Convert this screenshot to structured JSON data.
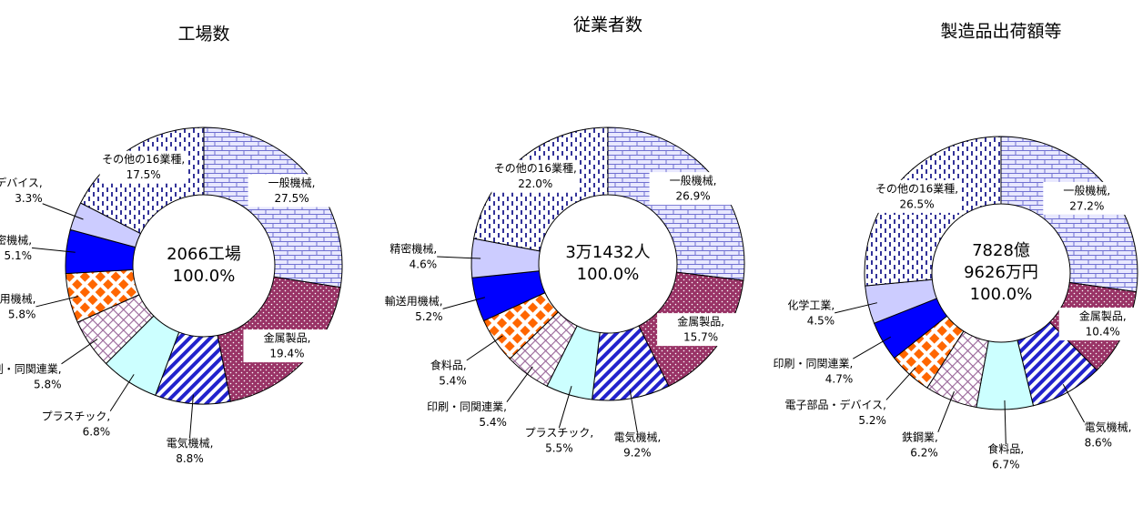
{
  "chart_data": [
    {
      "type": "pie",
      "title": "工場数",
      "categories": [
        "一般機械,",
        "金属製品,",
        "電気機械,",
        "プラスチック,",
        "印刷・同関連業,",
        "輸送用機械,",
        "精密機械,",
        "電子部品・デバイス,",
        "その他の16業種,"
      ],
      "values": [
        27.5,
        19.4,
        8.8,
        6.8,
        5.8,
        5.8,
        5.1,
        3.3,
        17.5
      ],
      "value_labels": [
        "27.5%",
        "19.4%",
        "8.8%",
        "6.8%",
        "5.8%",
        "5.8%",
        "5.1%",
        "3.3%",
        "17.5%"
      ],
      "center_label": [
        "2066工場",
        "100.0%"
      ]
    },
    {
      "type": "pie",
      "title": "従業者数",
      "categories": [
        "一般機械,",
        "金属製品,",
        "電気機械,",
        "プラスチック,",
        "印刷・同関連業,",
        "食料品,",
        "輸送用機械,",
        "精密機械,",
        "その他の16業種,"
      ],
      "values": [
        26.9,
        15.7,
        9.2,
        5.5,
        5.4,
        5.4,
        5.2,
        4.6,
        22.0
      ],
      "value_labels": [
        "26.9%",
        "15.7%",
        "9.2%",
        "5.5%",
        "5.4%",
        "5.4%",
        "5.2%",
        "4.6%",
        "22.0%"
      ],
      "center_label": [
        "3万1432人",
        "100.0%"
      ]
    },
    {
      "type": "pie",
      "title": "製造品出荷額等",
      "categories": [
        "一般機械,",
        "金属製品,",
        "電気機械,",
        "食料品,",
        "鉄鋼業,",
        "電子部品・デバイス,",
        "印刷・同関連業,",
        "化学工業,",
        "その他の16業種,"
      ],
      "values": [
        27.2,
        10.4,
        8.6,
        6.7,
        6.2,
        5.2,
        4.7,
        4.5,
        26.5
      ],
      "value_labels": [
        "27.2%",
        "10.4%",
        "8.6%",
        "6.7%",
        "6.2%",
        "5.2%",
        "4.7%",
        "4.5%",
        "26.5%"
      ],
      "center_label": [
        "7828億",
        "9626万円",
        "100.0%"
      ]
    }
  ]
}
